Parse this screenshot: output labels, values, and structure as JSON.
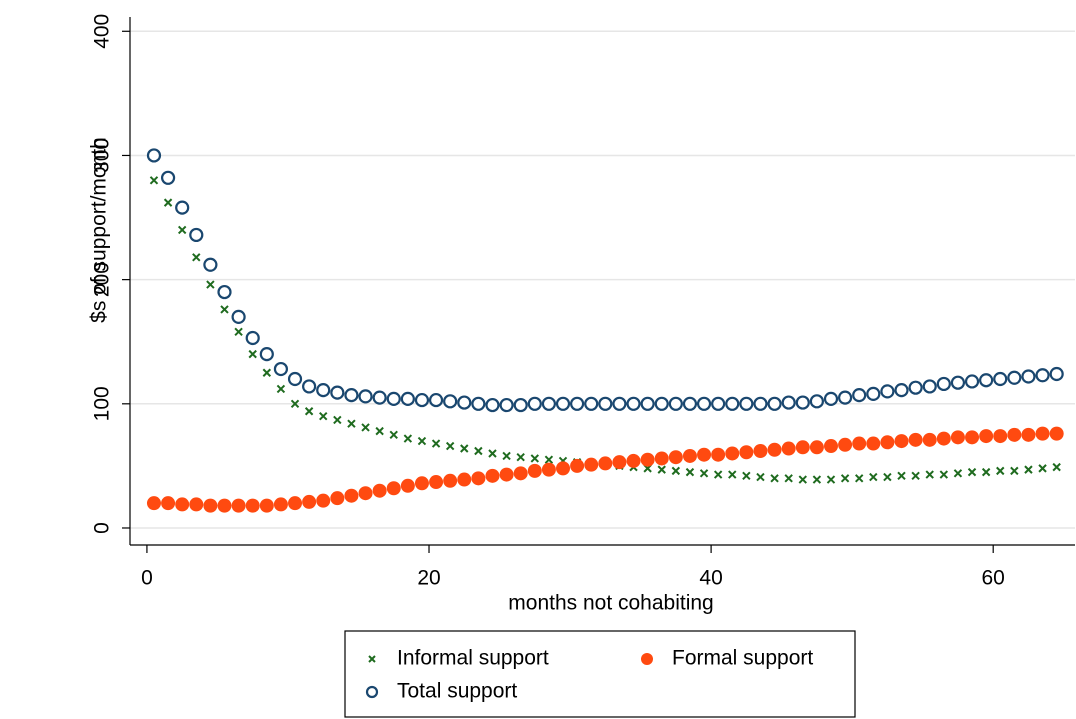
{
  "chart_data": {
    "type": "scatter",
    "x_label": "months not cohabiting",
    "y_label": "$s of support/month",
    "x": [
      0.5,
      1.5,
      2.5,
      3.5,
      4.5,
      5.5,
      6.5,
      7.5,
      8.5,
      9.5,
      10.5,
      11.5,
      12.5,
      13.5,
      14.5,
      15.5,
      16.5,
      17.5,
      18.5,
      19.5,
      20.5,
      21.5,
      22.5,
      23.5,
      24.5,
      25.5,
      26.5,
      27.5,
      28.5,
      29.5,
      30.5,
      31.5,
      32.5,
      33.5,
      34.5,
      35.5,
      36.5,
      37.5,
      38.5,
      39.5,
      40.5,
      41.5,
      42.5,
      43.5,
      44.5,
      45.5,
      46.5,
      47.5,
      48.5,
      49.5,
      50.5,
      51.5,
      52.5,
      53.5,
      54.5,
      55.5,
      56.5,
      57.5,
      58.5,
      59.5,
      60.5,
      61.5,
      62.5,
      63.5,
      64.5
    ],
    "series": [
      {
        "name": "Informal support",
        "color": "#1f6b1f",
        "marker": "x",
        "values": [
          280,
          262,
          240,
          218,
          196,
          176,
          158,
          140,
          125,
          112,
          100,
          94,
          90,
          87,
          84,
          81,
          78,
          75,
          72,
          70,
          68,
          66,
          64,
          62,
          60,
          58,
          57,
          56,
          55,
          54,
          53,
          52,
          51,
          50,
          49,
          48,
          47,
          46,
          45,
          44,
          43,
          43,
          42,
          41,
          40,
          40,
          39,
          39,
          39,
          40,
          40,
          41,
          41,
          42,
          42,
          43,
          43,
          44,
          45,
          45,
          46,
          46,
          47,
          48,
          49
        ]
      },
      {
        "name": "Formal support",
        "color": "#ff4a10",
        "marker": "filled-circle",
        "values": [
          20,
          20,
          19,
          19,
          18,
          18,
          18,
          18,
          18,
          19,
          20,
          21,
          22,
          24,
          26,
          28,
          30,
          32,
          34,
          36,
          37,
          38,
          39,
          40,
          42,
          43,
          44,
          46,
          47,
          48,
          50,
          51,
          52,
          53,
          54,
          55,
          56,
          57,
          58,
          59,
          59,
          60,
          61,
          62,
          63,
          64,
          65,
          65,
          66,
          67,
          68,
          68,
          69,
          70,
          71,
          71,
          72,
          73,
          73,
          74,
          74,
          75,
          75,
          76,
          76
        ]
      },
      {
        "name": "Total support",
        "color": "#1a476f",
        "marker": "hollow-circle",
        "values": [
          300,
          282,
          258,
          236,
          212,
          190,
          170,
          153,
          140,
          128,
          120,
          114,
          111,
          109,
          107,
          106,
          105,
          104,
          104,
          103,
          103,
          102,
          101,
          100,
          99,
          99,
          99,
          100,
          100,
          100,
          100,
          100,
          100,
          100,
          100,
          100,
          100,
          100,
          100,
          100,
          100,
          100,
          100,
          100,
          100,
          101,
          101,
          102,
          104,
          105,
          107,
          108,
          110,
          111,
          113,
          114,
          116,
          117,
          118,
          119,
          120,
          121,
          122,
          123,
          124
        ]
      }
    ],
    "xlim": [
      -1.2,
      65.8
    ],
    "ylim": [
      -13.7,
      411.5
    ],
    "xticks": [
      0,
      20,
      40,
      60
    ],
    "yticks": [
      0,
      100,
      200,
      300,
      400
    ],
    "grid": true,
    "legend": "bottom"
  }
}
